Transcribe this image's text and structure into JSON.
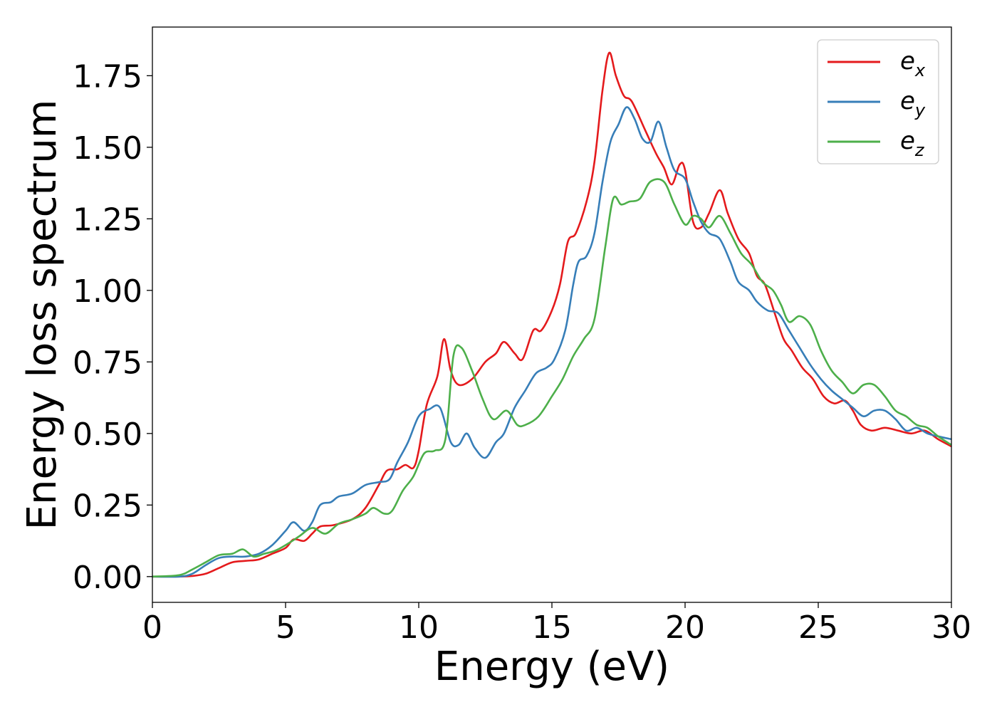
{
  "chart_data": {
    "type": "line",
    "xlabel": "Energy (eV)",
    "ylabel": "Energy loss spectrum",
    "xlim": [
      0,
      30
    ],
    "ylim": [
      -0.09,
      1.92
    ],
    "x_ticks": [
      0,
      5,
      10,
      15,
      20,
      25,
      30
    ],
    "x_tick_labels": [
      "0",
      "5",
      "10",
      "15",
      "20",
      "25",
      "30"
    ],
    "y_ticks": [
      0.0,
      0.25,
      0.5,
      0.75,
      1.0,
      1.25,
      1.5,
      1.75
    ],
    "y_tick_labels": [
      "0.00",
      "0.25",
      "0.50",
      "0.75",
      "1.00",
      "1.25",
      "1.50",
      "1.75"
    ],
    "grid": false,
    "legend_position": "top-right",
    "series": [
      {
        "name": "e_x",
        "label_base": "e",
        "label_sub": "x",
        "color": "#e41a1c",
        "points": [
          [
            0,
            0
          ],
          [
            1,
            0
          ],
          [
            1.5,
            0.002
          ],
          [
            2,
            0.01
          ],
          [
            2.5,
            0.03
          ],
          [
            3,
            0.05
          ],
          [
            3.5,
            0.055
          ],
          [
            4,
            0.06
          ],
          [
            4.5,
            0.08
          ],
          [
            5,
            0.1
          ],
          [
            5.3,
            0.13
          ],
          [
            5.7,
            0.125
          ],
          [
            6,
            0.15
          ],
          [
            6.3,
            0.175
          ],
          [
            6.8,
            0.18
          ],
          [
            7.5,
            0.2
          ],
          [
            8,
            0.24
          ],
          [
            8.5,
            0.32
          ],
          [
            8.8,
            0.37
          ],
          [
            9.2,
            0.375
          ],
          [
            9.5,
            0.39
          ],
          [
            9.8,
            0.38
          ],
          [
            10,
            0.44
          ],
          [
            10.3,
            0.6
          ],
          [
            10.7,
            0.7
          ],
          [
            10.95,
            0.83
          ],
          [
            11.2,
            0.72
          ],
          [
            11.5,
            0.67
          ],
          [
            12,
            0.69
          ],
          [
            12.5,
            0.75
          ],
          [
            12.9,
            0.78
          ],
          [
            13.2,
            0.82
          ],
          [
            13.6,
            0.78
          ],
          [
            13.9,
            0.76
          ],
          [
            14.3,
            0.86
          ],
          [
            14.6,
            0.86
          ],
          [
            15,
            0.93
          ],
          [
            15.3,
            1.02
          ],
          [
            15.6,
            1.17
          ],
          [
            15.9,
            1.2
          ],
          [
            16.3,
            1.31
          ],
          [
            16.6,
            1.45
          ],
          [
            16.9,
            1.7
          ],
          [
            17.15,
            1.83
          ],
          [
            17.4,
            1.75
          ],
          [
            17.7,
            1.68
          ],
          [
            18,
            1.66
          ],
          [
            18.5,
            1.56
          ],
          [
            18.9,
            1.48
          ],
          [
            19.2,
            1.43
          ],
          [
            19.5,
            1.37
          ],
          [
            19.8,
            1.44
          ],
          [
            20,
            1.42
          ],
          [
            20.3,
            1.24
          ],
          [
            20.6,
            1.22
          ],
          [
            20.9,
            1.27
          ],
          [
            21.3,
            1.35
          ],
          [
            21.6,
            1.27
          ],
          [
            22,
            1.18
          ],
          [
            22.4,
            1.13
          ],
          [
            22.7,
            1.05
          ],
          [
            23,
            1.02
          ],
          [
            23.4,
            0.91
          ],
          [
            23.7,
            0.83
          ],
          [
            24,
            0.79
          ],
          [
            24.4,
            0.73
          ],
          [
            24.8,
            0.69
          ],
          [
            25.2,
            0.63
          ],
          [
            25.6,
            0.605
          ],
          [
            26,
            0.615
          ],
          [
            26.3,
            0.58
          ],
          [
            26.6,
            0.53
          ],
          [
            27,
            0.51
          ],
          [
            27.5,
            0.52
          ],
          [
            28,
            0.51
          ],
          [
            28.5,
            0.5
          ],
          [
            29,
            0.51
          ],
          [
            29.5,
            0.48
          ],
          [
            30,
            0.455
          ]
        ]
      },
      {
        "name": "e_y",
        "label_base": "e",
        "label_sub": "y",
        "color": "#377eb8",
        "points": [
          [
            0,
            0
          ],
          [
            1,
            0
          ],
          [
            1.5,
            0.01
          ],
          [
            2,
            0.04
          ],
          [
            2.5,
            0.065
          ],
          [
            3,
            0.07
          ],
          [
            3.5,
            0.07
          ],
          [
            4,
            0.08
          ],
          [
            4.5,
            0.11
          ],
          [
            5,
            0.16
          ],
          [
            5.3,
            0.19
          ],
          [
            5.7,
            0.16
          ],
          [
            6,
            0.19
          ],
          [
            6.3,
            0.25
          ],
          [
            6.7,
            0.26
          ],
          [
            7,
            0.28
          ],
          [
            7.5,
            0.29
          ],
          [
            8,
            0.32
          ],
          [
            8.5,
            0.33
          ],
          [
            8.9,
            0.34
          ],
          [
            9.2,
            0.4
          ],
          [
            9.6,
            0.47
          ],
          [
            10,
            0.56
          ],
          [
            10.4,
            0.585
          ],
          [
            10.8,
            0.59
          ],
          [
            11.2,
            0.47
          ],
          [
            11.5,
            0.46
          ],
          [
            11.8,
            0.5
          ],
          [
            12.1,
            0.45
          ],
          [
            12.5,
            0.415
          ],
          [
            12.9,
            0.47
          ],
          [
            13.2,
            0.5
          ],
          [
            13.6,
            0.59
          ],
          [
            14,
            0.65
          ],
          [
            14.4,
            0.71
          ],
          [
            14.8,
            0.73
          ],
          [
            15.1,
            0.76
          ],
          [
            15.5,
            0.86
          ],
          [
            15.8,
            1.02
          ],
          [
            16,
            1.1
          ],
          [
            16.3,
            1.12
          ],
          [
            16.6,
            1.2
          ],
          [
            16.9,
            1.38
          ],
          [
            17.2,
            1.52
          ],
          [
            17.5,
            1.58
          ],
          [
            17.8,
            1.64
          ],
          [
            18.1,
            1.6
          ],
          [
            18.4,
            1.53
          ],
          [
            18.7,
            1.52
          ],
          [
            19,
            1.59
          ],
          [
            19.3,
            1.5
          ],
          [
            19.6,
            1.42
          ],
          [
            20,
            1.39
          ],
          [
            20.3,
            1.31
          ],
          [
            20.6,
            1.24
          ],
          [
            20.9,
            1.2
          ],
          [
            21.3,
            1.18
          ],
          [
            21.7,
            1.1
          ],
          [
            22,
            1.03
          ],
          [
            22.4,
            1
          ],
          [
            22.7,
            0.96
          ],
          [
            23.1,
            0.93
          ],
          [
            23.5,
            0.92
          ],
          [
            23.9,
            0.86
          ],
          [
            24.3,
            0.8
          ],
          [
            24.7,
            0.74
          ],
          [
            25.1,
            0.69
          ],
          [
            25.5,
            0.65
          ],
          [
            25.9,
            0.62
          ],
          [
            26.3,
            0.59
          ],
          [
            26.7,
            0.56
          ],
          [
            27.1,
            0.58
          ],
          [
            27.5,
            0.58
          ],
          [
            27.9,
            0.55
          ],
          [
            28.3,
            0.51
          ],
          [
            28.7,
            0.52
          ],
          [
            29.1,
            0.5
          ],
          [
            29.5,
            0.49
          ],
          [
            30,
            0.48
          ]
        ]
      },
      {
        "name": "e_z",
        "label_base": "e",
        "label_sub": "z",
        "color": "#4daf4a",
        "points": [
          [
            0,
            0
          ],
          [
            1,
            0.005
          ],
          [
            1.5,
            0.025
          ],
          [
            2,
            0.05
          ],
          [
            2.5,
            0.075
          ],
          [
            3,
            0.08
          ],
          [
            3.4,
            0.095
          ],
          [
            3.8,
            0.07
          ],
          [
            4.2,
            0.08
          ],
          [
            4.6,
            0.09
          ],
          [
            5,
            0.11
          ],
          [
            5.5,
            0.14
          ],
          [
            6,
            0.17
          ],
          [
            6.5,
            0.15
          ],
          [
            7,
            0.185
          ],
          [
            7.5,
            0.2
          ],
          [
            8,
            0.22
          ],
          [
            8.3,
            0.24
          ],
          [
            8.7,
            0.22
          ],
          [
            9,
            0.23
          ],
          [
            9.4,
            0.3
          ],
          [
            9.8,
            0.35
          ],
          [
            10.2,
            0.43
          ],
          [
            10.6,
            0.44
          ],
          [
            11,
            0.48
          ],
          [
            11.3,
            0.77
          ],
          [
            11.6,
            0.8
          ],
          [
            12,
            0.72
          ],
          [
            12.4,
            0.62
          ],
          [
            12.8,
            0.55
          ],
          [
            13.3,
            0.58
          ],
          [
            13.7,
            0.53
          ],
          [
            14,
            0.53
          ],
          [
            14.5,
            0.56
          ],
          [
            15,
            0.63
          ],
          [
            15.4,
            0.69
          ],
          [
            15.8,
            0.77
          ],
          [
            16.2,
            0.83
          ],
          [
            16.6,
            0.9
          ],
          [
            17,
            1.15
          ],
          [
            17.3,
            1.32
          ],
          [
            17.6,
            1.3
          ],
          [
            17.9,
            1.31
          ],
          [
            18.3,
            1.32
          ],
          [
            18.7,
            1.38
          ],
          [
            19.2,
            1.38
          ],
          [
            19.6,
            1.3
          ],
          [
            20,
            1.23
          ],
          [
            20.3,
            1.26
          ],
          [
            20.6,
            1.25
          ],
          [
            20.9,
            1.22
          ],
          [
            21.3,
            1.26
          ],
          [
            21.7,
            1.2
          ],
          [
            22.1,
            1.13
          ],
          [
            22.5,
            1.09
          ],
          [
            22.9,
            1.03
          ],
          [
            23.3,
            1
          ],
          [
            23.6,
            0.95
          ],
          [
            23.9,
            0.89
          ],
          [
            24.3,
            0.91
          ],
          [
            24.7,
            0.88
          ],
          [
            25.1,
            0.79
          ],
          [
            25.5,
            0.72
          ],
          [
            25.9,
            0.68
          ],
          [
            26.3,
            0.64
          ],
          [
            26.7,
            0.67
          ],
          [
            27.1,
            0.67
          ],
          [
            27.5,
            0.63
          ],
          [
            27.9,
            0.58
          ],
          [
            28.3,
            0.56
          ],
          [
            28.7,
            0.53
          ],
          [
            29.1,
            0.52
          ],
          [
            29.5,
            0.49
          ],
          [
            30,
            0.46
          ]
        ]
      }
    ]
  }
}
